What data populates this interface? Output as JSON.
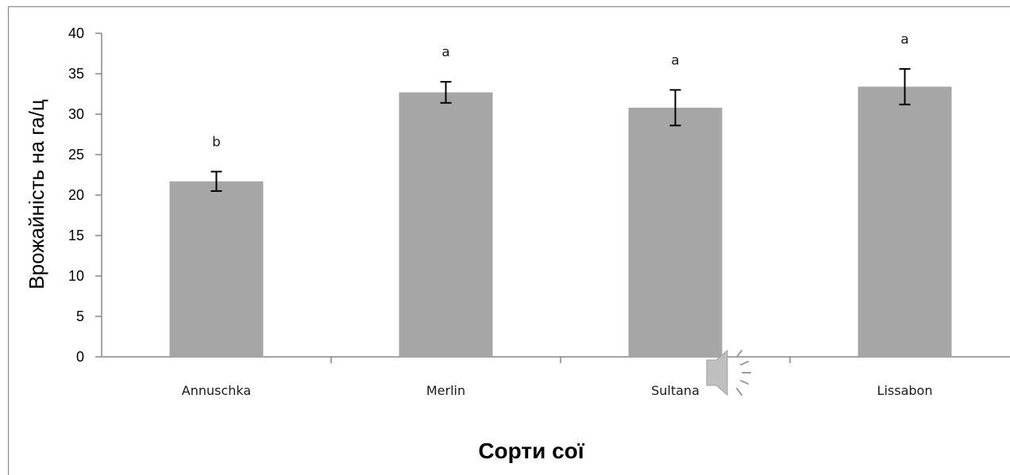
{
  "chart_data": {
    "type": "bar",
    "categories": [
      "Annuschka",
      "Merlin",
      "Sultana",
      "Lissabon"
    ],
    "values": [
      21.7,
      32.7,
      30.8,
      33.4
    ],
    "error": [
      1.2,
      1.3,
      2.2,
      2.2
    ],
    "significance_labels": [
      "b",
      "a",
      "a",
      "a"
    ],
    "xlabel": "Сорти сої",
    "ylabel": "Врожайність на га/ц",
    "ylim": [
      0,
      40
    ],
    "yticks": [
      0,
      5,
      10,
      15,
      20,
      25,
      30,
      35,
      40
    ],
    "bar_color": "#a6a6a6",
    "grid": false,
    "legend": "none"
  },
  "overlay": {
    "icon": "speaker-icon"
  }
}
